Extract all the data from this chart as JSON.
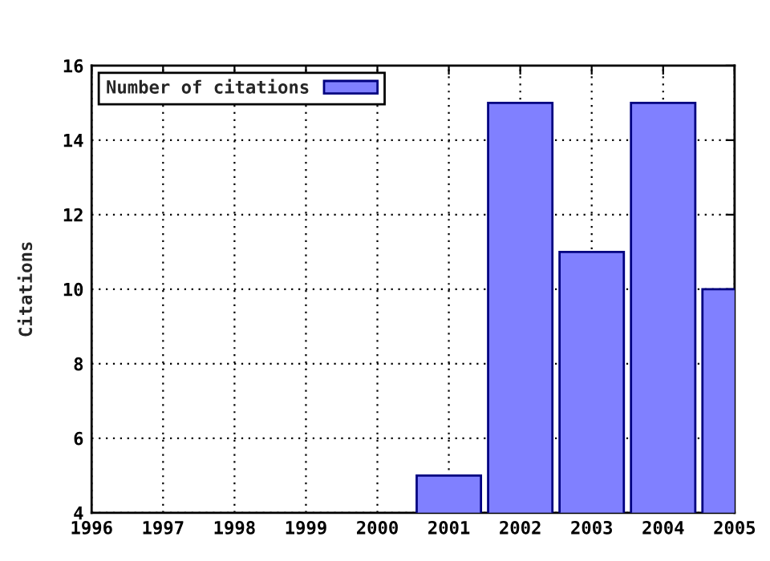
{
  "chart_data": {
    "type": "bar",
    "ylabel": "Citations",
    "x": [
      2001,
      2002,
      2003,
      2004,
      2005
    ],
    "series": [
      {
        "name": "Number of citations",
        "color": "#8080ff",
        "values": [
          5,
          15,
          11,
          15,
          10
        ]
      }
    ],
    "xlim": [
      1996,
      2005
    ],
    "xticks": [
      1996,
      1997,
      1998,
      1999,
      2000,
      2001,
      2002,
      2003,
      2004,
      2005
    ],
    "ylim": [
      4,
      16
    ],
    "yticks": [
      4,
      6,
      8,
      10,
      12,
      14,
      16
    ],
    "grid": true,
    "legend": "top left"
  }
}
